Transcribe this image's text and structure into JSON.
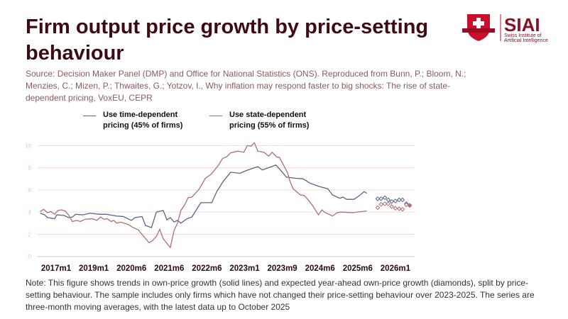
{
  "title": "Firm output price growth by price-setting behaviour",
  "source": "Source: Decision Maker Panel (DMP) and Office for National Statistics (ONS). Reproduced from Bunn, P.; Bloom, N.; Menzies, C.; Mizen, P.; Thwaites, G.; Yotzov, I., Why inflation may respond faster to big shocks: The rise of state-dependent pricing, VoxEU, CEPR",
  "note": "Note: This figure shows trends in own-price growth (solid lines) and expected year-ahead own-price growth (diamonds), split by price-setting behaviour. The sample includes only firms which have not changed their price-setting behaviour over 2023-2025. The series are three-month moving averages, with the latest data up to October 2025",
  "logo": {
    "name": "SIAI",
    "subtitle": "Swiss Institute of Artificial Intelligence"
  },
  "colors": {
    "time_dependent": "#5b6484",
    "state_dependent": "#b06f6f",
    "grid": "#f6d9d9",
    "title": "#3d0c12"
  },
  "chart_data": {
    "type": "line",
    "title": "Firm output price growth by price-setting behaviour",
    "xlabel": "",
    "ylabel": "",
    "x_note": "x is category index; ticks every 10 periods",
    "xlim": [
      -5,
      95
    ],
    "ylim": [
      0,
      10
    ],
    "yticks": [
      0,
      2,
      4,
      6,
      8,
      10
    ],
    "grid": true,
    "legend_position": "top",
    "xticks": [
      {
        "x": 0,
        "label": "2017m1"
      },
      {
        "x": 10,
        "label": "2019m1"
      },
      {
        "x": 20,
        "label": "2020m6"
      },
      {
        "x": 30,
        "label": "2021m6"
      },
      {
        "x": 40,
        "label": "2022m6"
      },
      {
        "x": 50,
        "label": "2023m1"
      },
      {
        "x": 60,
        "label": "2023m9"
      },
      {
        "x": 70,
        "label": "2024m6"
      },
      {
        "x": 80,
        "label": "2025m6"
      },
      {
        "x": 90,
        "label": "2026m1"
      }
    ],
    "series": [
      {
        "name": "Use time-dependent pricing (45% of firms)",
        "legend": "Use time-dependent\npricing (45% of firms)",
        "color": "#5b6484",
        "points": [
          [
            -4.2,
            3.9
          ],
          [
            -3,
            3.75
          ],
          [
            -2.3,
            3.5
          ],
          [
            -0.4,
            3.4
          ],
          [
            0.2,
            3.75
          ],
          [
            2.1,
            3.7
          ],
          [
            3.3,
            3.5
          ],
          [
            4.3,
            3.55
          ],
          [
            5.2,
            3.8
          ],
          [
            7.1,
            3.75
          ],
          [
            9,
            3.9
          ],
          [
            11.5,
            3.8
          ],
          [
            13.4,
            3.8
          ],
          [
            15.9,
            3.65
          ],
          [
            17.8,
            3.6
          ],
          [
            20,
            3.25
          ],
          [
            20.9,
            3.5
          ],
          [
            22.8,
            3.6
          ],
          [
            23.7,
            2.8
          ],
          [
            25.3,
            2.6
          ],
          [
            26.6,
            4.0
          ],
          [
            28.4,
            4.15
          ],
          [
            29.4,
            3.3
          ],
          [
            30.3,
            3.5
          ],
          [
            31.3,
            3.1
          ],
          [
            32.2,
            3.25
          ],
          [
            33.1,
            3.0
          ],
          [
            34.7,
            3.4
          ],
          [
            36,
            3.55
          ],
          [
            38.4,
            4.85
          ],
          [
            41.3,
            4.85
          ],
          [
            42.6,
            5.85
          ],
          [
            44.4,
            6.8
          ],
          [
            46.3,
            7.6
          ],
          [
            48.8,
            7.5
          ],
          [
            50.1,
            7.7
          ],
          [
            51.7,
            7.9
          ],
          [
            53.5,
            8.1
          ],
          [
            54.7,
            7.8
          ],
          [
            56.7,
            8.05
          ],
          [
            58.3,
            8.25
          ],
          [
            59.5,
            7.8
          ],
          [
            61.1,
            7.15
          ],
          [
            63.6,
            7.05
          ],
          [
            65.5,
            7.0
          ],
          [
            67.4,
            6.6
          ],
          [
            69.9,
            6.3
          ],
          [
            72.1,
            6.1
          ],
          [
            73.3,
            5.55
          ],
          [
            75.2,
            5.25
          ],
          [
            76.1,
            5.35
          ],
          [
            77.1,
            5.15
          ],
          [
            79,
            5.15
          ],
          [
            80.5,
            5.5
          ],
          [
            81.7,
            5.85
          ],
          [
            82.4,
            5.7
          ]
        ],
        "expected": [
          [
            85.3,
            5.2
          ],
          [
            86.2,
            5.2
          ],
          [
            87.2,
            5.3
          ],
          [
            88.1,
            5.1
          ],
          [
            89,
            4.95
          ],
          [
            90,
            5.0
          ],
          [
            91,
            5.1
          ],
          [
            91.9,
            5.1
          ],
          [
            92.9,
            4.75
          ],
          [
            93.8,
            4.6
          ]
        ]
      },
      {
        "name": "Use state-dependent pricing (55% of firms)",
        "legend": "Use state-dependent\npricing (55% of firms)",
        "color": "#b06f6f",
        "points": [
          [
            -4.2,
            4.05
          ],
          [
            -3.3,
            4.25
          ],
          [
            -2.3,
            3.95
          ],
          [
            -1.4,
            4.05
          ],
          [
            -0.4,
            3.8
          ],
          [
            0.5,
            4.15
          ],
          [
            1.4,
            4.2
          ],
          [
            2.4,
            4.1
          ],
          [
            3.3,
            3.75
          ],
          [
            4.3,
            3.15
          ],
          [
            5.5,
            3.25
          ],
          [
            6.4,
            3.15
          ],
          [
            7.7,
            3.35
          ],
          [
            9.6,
            3.4
          ],
          [
            10.8,
            3.25
          ],
          [
            11.8,
            3.55
          ],
          [
            12.7,
            3.35
          ],
          [
            13.6,
            3.4
          ],
          [
            14.6,
            3.15
          ],
          [
            15.3,
            3.25
          ],
          [
            16.1,
            3.0
          ],
          [
            17.1,
            3.1
          ],
          [
            19,
            2.9
          ],
          [
            20.2,
            2.65
          ],
          [
            21.8,
            2.4
          ],
          [
            23,
            1.9
          ],
          [
            24.6,
            1.25
          ],
          [
            25.5,
            1.4
          ],
          [
            26.6,
            1.8
          ],
          [
            27.5,
            2.45
          ],
          [
            28.4,
            1.6
          ],
          [
            30.3,
            0.8
          ],
          [
            31.3,
            2.35
          ],
          [
            32.2,
            3.0
          ],
          [
            33.1,
            4.15
          ],
          [
            34.1,
            4.65
          ],
          [
            35,
            5.3
          ],
          [
            36,
            5.35
          ],
          [
            37.9,
            6.05
          ],
          [
            39.6,
            7.05
          ],
          [
            41.1,
            7.4
          ],
          [
            43,
            8.2
          ],
          [
            44.2,
            8.85
          ],
          [
            45.3,
            9.0
          ],
          [
            46.3,
            9.35
          ],
          [
            48.2,
            9.5
          ],
          [
            49.8,
            9.4
          ],
          [
            50.7,
            10.0
          ],
          [
            51.7,
            9.95
          ],
          [
            52.6,
            10.25
          ],
          [
            53.5,
            9.5
          ],
          [
            55.1,
            9.4
          ],
          [
            56.4,
            9.05
          ],
          [
            57.3,
            9.4
          ],
          [
            58.6,
            8.95
          ],
          [
            59.2,
            8.95
          ],
          [
            60.4,
            8.2
          ],
          [
            61.4,
            7.55
          ],
          [
            62,
            6.8
          ],
          [
            62.9,
            6.1
          ],
          [
            63.9,
            5.8
          ],
          [
            64.8,
            5.55
          ],
          [
            65.8,
            5.5
          ],
          [
            67,
            5.05
          ],
          [
            68,
            4.6
          ],
          [
            69.6,
            3.75
          ],
          [
            70.5,
            4.2
          ],
          [
            71.4,
            3.95
          ],
          [
            73.3,
            3.65
          ],
          [
            74.6,
            3.95
          ],
          [
            75.5,
            4.0
          ],
          [
            78.7,
            3.95
          ],
          [
            82.4,
            4.1
          ]
        ],
        "expected": [
          [
            85.3,
            4.4
          ],
          [
            86.2,
            4.7
          ],
          [
            87.2,
            4.75
          ],
          [
            88.1,
            4.75
          ],
          [
            89,
            4.5
          ],
          [
            90,
            4.35
          ],
          [
            91,
            4.3
          ],
          [
            91.9,
            4.25
          ],
          [
            92.9,
            4.65
          ],
          [
            93.8,
            4.6
          ]
        ]
      }
    ]
  }
}
